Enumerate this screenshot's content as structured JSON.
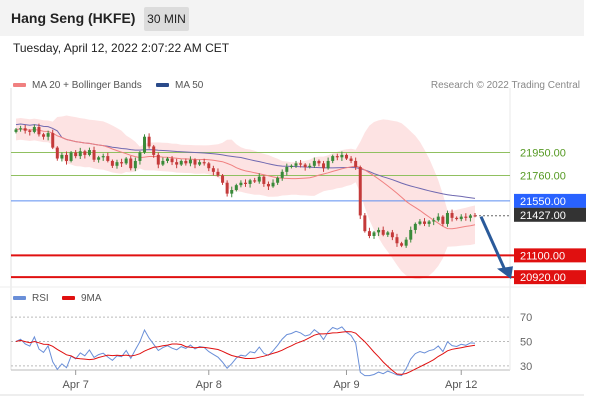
{
  "header": {
    "title": "Hang Seng (HKFE)",
    "interval": "30 MIN"
  },
  "datetime": "Tuesday, April 12, 2022 2:07:22 AM CET",
  "legend": {
    "ma_bb_label": "MA 20 + Bollinger Bands",
    "ma50_label": "MA 50",
    "rsi_label": "RSI",
    "ma9_label": "9MA"
  },
  "credit": "Research © 2022 Trading Central",
  "colors": {
    "ma20": "#f08080",
    "bb_fill": "#fddede",
    "ma50": "#6f68b0",
    "candle_up": "#3a8a3a",
    "candle_down": "#c43a3a",
    "pivot": "#2962ff",
    "support": "#e01010",
    "resistance": "#90c060",
    "rsi": "#6a8fd8",
    "rsi_ma": "#e01010",
    "arrow": "#2a5a9a"
  },
  "chart_data": [
    {
      "type": "candlestick",
      "x_ticks": [
        "Apr 7",
        "Apr 8",
        "Apr 9",
        "Apr 12"
      ],
      "ylim": [
        20880,
        22400
      ],
      "levels": [
        {
          "label": "21950.00",
          "value": 21950,
          "kind": "resistance"
        },
        {
          "label": "21760.00",
          "value": 21760,
          "kind": "resistance"
        },
        {
          "label": "21550.00",
          "value": 21550,
          "kind": "pivot"
        },
        {
          "label": "21427.00",
          "value": 21427,
          "kind": "last"
        },
        {
          "label": "21100.00",
          "value": 21100,
          "kind": "support"
        },
        {
          "label": "20920.00",
          "value": 20920,
          "kind": "support"
        }
      ],
      "close": [
        22140,
        22150,
        22130,
        22120,
        22160,
        22100,
        22080,
        22110,
        21990,
        21900,
        21930,
        21880,
        21950,
        21920,
        21960,
        21930,
        21970,
        21890,
        21910,
        21920,
        21880,
        21840,
        21870,
        21860,
        21900,
        21820,
        21880,
        21950,
        22080,
        22000,
        21930,
        21850,
        21880,
        21900,
        21870,
        21850,
        21880,
        21860,
        21890,
        21850,
        21870,
        21860,
        21820,
        21790,
        21760,
        21700,
        21610,
        21640,
        21680,
        21700,
        21690,
        21720,
        21710,
        21750,
        21690,
        21670,
        21700,
        21740,
        21790,
        21830,
        21840,
        21860,
        21850,
        21830,
        21840,
        21880,
        21860,
        21820,
        21880,
        21920,
        21910,
        21930,
        21900,
        21880,
        21830,
        21430,
        21300,
        21260,
        21290,
        21310,
        21270,
        21290,
        21250,
        21200,
        21180,
        21230,
        21310,
        21360,
        21380,
        21360,
        21380,
        21390,
        21420,
        21360,
        21450,
        21410,
        21400,
        21420,
        21410,
        21430,
        21427
      ],
      "rsi": {
        "ylim": [
          20,
          80
        ],
        "ticks": [
          70,
          50,
          30
        ]
      }
    }
  ]
}
